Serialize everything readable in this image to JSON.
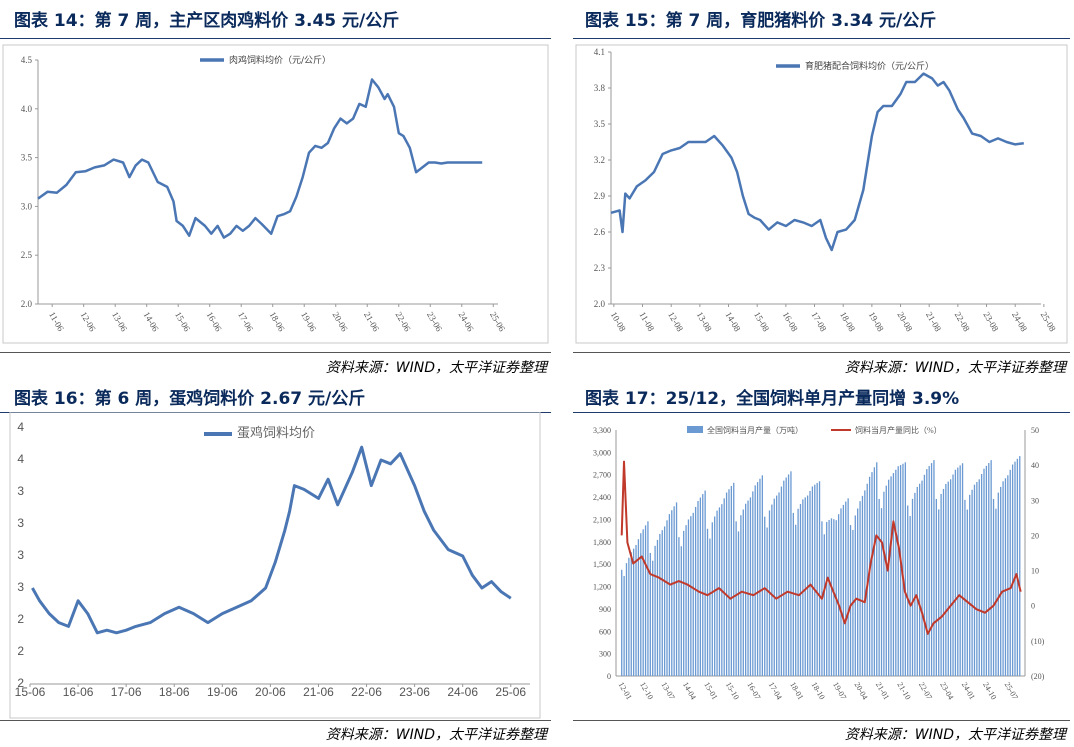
{
  "panels": [
    {
      "id": "fig14",
      "title": "图表 14：第 7 周，主产区肉鸡料价 3.45 元/公斤",
      "source": "资料来源：WIND，太平洋证券整理",
      "chart_data": {
        "type": "line",
        "legend": "肉鸡饲料均价（元/公斤）",
        "ylim": [
          2.0,
          4.5
        ],
        "yticks": [
          "2.0",
          "2.5",
          "3.0",
          "3.5",
          "4.0",
          "4.5"
        ],
        "xlim": [
          2011.0,
          2025.6
        ],
        "xticks": [
          "11-06",
          "12-06",
          "13-06",
          "14-06",
          "15-06",
          "16-06",
          "17-06",
          "18-06",
          "19-06",
          "20-06",
          "21-06",
          "22-06",
          "23-06",
          "24-06",
          "25-06"
        ],
        "series": [
          {
            "color": "#4a76b4",
            "x": [
              2011.0,
              2011.3,
              2011.6,
              2011.9,
              2012.2,
              2012.5,
              2012.8,
              2013.1,
              2013.4,
              2013.7,
              2013.9,
              2014.1,
              2014.3,
              2014.5,
              2014.8,
              2015.1,
              2015.3,
              2015.4,
              2015.6,
              2015.8,
              2016.0,
              2016.3,
              2016.5,
              2016.7,
              2016.9,
              2017.1,
              2017.3,
              2017.5,
              2017.7,
              2017.9,
              2018.1,
              2018.4,
              2018.6,
              2018.8,
              2019.0,
              2019.2,
              2019.4,
              2019.6,
              2019.8,
              2020.0,
              2020.2,
              2020.4,
              2020.6,
              2020.8,
              2021.0,
              2021.2,
              2021.4,
              2021.6,
              2021.8,
              2022.0,
              2022.1,
              2022.3,
              2022.45,
              2022.6,
              2022.8,
              2023.0,
              2023.2,
              2023.4,
              2023.6,
              2023.8,
              2024.0,
              2024.2,
              2024.4,
              2024.5,
              2024.7,
              2024.9,
              2025.1
            ],
            "y": [
              3.08,
              3.15,
              3.14,
              3.22,
              3.35,
              3.36,
              3.4,
              3.42,
              3.48,
              3.45,
              3.3,
              3.42,
              3.48,
              3.45,
              3.25,
              3.2,
              3.05,
              2.85,
              2.8,
              2.7,
              2.88,
              2.8,
              2.72,
              2.8,
              2.68,
              2.72,
              2.8,
              2.75,
              2.8,
              2.88,
              2.82,
              2.72,
              2.9,
              2.92,
              2.95,
              3.1,
              3.3,
              3.55,
              3.62,
              3.6,
              3.65,
              3.8,
              3.9,
              3.85,
              3.9,
              4.05,
              4.02,
              4.3,
              4.22,
              4.1,
              4.15,
              4.02,
              3.75,
              3.72,
              3.6,
              3.35,
              3.4,
              3.45,
              3.45,
              3.44,
              3.45,
              3.45,
              3.45,
              3.45,
              3.45,
              3.45,
              3.45
            ]
          }
        ]
      }
    },
    {
      "id": "fig15",
      "title": "图表 15：第 7 周，育肥猪料价 3.34 元/公斤",
      "source": "资料来源：WIND，太平洋证券整理",
      "chart_data": {
        "type": "line",
        "legend": "育肥猪配合饲料均价（元/公斤）",
        "ylim": [
          2.0,
          4.1
        ],
        "yticks": [
          "2.0",
          "2.3",
          "2.6",
          "2.9",
          "3.2",
          "3.5",
          "3.8",
          "4.1"
        ],
        "xlim": [
          2010.7,
          2025.7
        ],
        "xticks": [
          "10-08",
          "11-08",
          "12-08",
          "13-08",
          "14-08",
          "15-08",
          "16-08",
          "17-08",
          "18-08",
          "19-08",
          "20-08",
          "21-08",
          "22-08",
          "23-08",
          "24-08",
          "25-08"
        ],
        "series": [
          {
            "color": "#4a76b4",
            "x": [
              2010.7,
              2011.0,
              2011.1,
              2011.2,
              2011.35,
              2011.6,
              2011.9,
              2012.2,
              2012.5,
              2012.8,
              2013.1,
              2013.4,
              2013.7,
              2014.0,
              2014.3,
              2014.6,
              2014.9,
              2015.1,
              2015.3,
              2015.5,
              2015.7,
              2015.9,
              2016.2,
              2016.5,
              2016.8,
              2017.1,
              2017.4,
              2017.7,
              2018.0,
              2018.2,
              2018.4,
              2018.6,
              2018.9,
              2019.2,
              2019.5,
              2019.8,
              2020.0,
              2020.2,
              2020.5,
              2020.8,
              2021.0,
              2021.3,
              2021.6,
              2021.9,
              2022.1,
              2022.3,
              2022.5,
              2022.8,
              2023.0,
              2023.3,
              2023.6,
              2023.9,
              2024.2,
              2024.5,
              2024.8,
              2025.1
            ],
            "y": [
              2.76,
              2.78,
              2.6,
              2.92,
              2.88,
              2.98,
              3.03,
              3.1,
              3.25,
              3.28,
              3.3,
              3.35,
              3.35,
              3.35,
              3.4,
              3.32,
              3.22,
              3.1,
              2.9,
              2.75,
              2.72,
              2.7,
              2.62,
              2.68,
              2.65,
              2.7,
              2.68,
              2.65,
              2.7,
              2.55,
              2.45,
              2.6,
              2.62,
              2.7,
              2.95,
              3.4,
              3.6,
              3.65,
              3.65,
              3.75,
              3.85,
              3.85,
              3.92,
              3.88,
              3.82,
              3.85,
              3.78,
              3.62,
              3.55,
              3.42,
              3.4,
              3.35,
              3.38,
              3.35,
              3.33,
              3.34
            ]
          }
        ]
      }
    },
    {
      "id": "fig16",
      "title": "图表 16：第 6 周，蛋鸡饲料价 2.67 元/公斤",
      "source": "资料来源：WIND，太平洋证券整理",
      "chart_data": {
        "type": "line",
        "legend": "蛋鸡饲料均价",
        "ytick_labels": [
          "2",
          "2",
          "2",
          "3",
          "3",
          "3",
          "3",
          "4",
          "4"
        ],
        "ytick_values": [
          2.0,
          2.25,
          2.5,
          2.75,
          3.0,
          3.25,
          3.5,
          3.75,
          4.0
        ],
        "ylim": [
          2.0,
          4.0
        ],
        "xlim": [
          2015.3,
          2025.7
        ],
        "xticks": [
          "15-06",
          "16-06",
          "17-06",
          "18-06",
          "19-06",
          "20-06",
          "21-06",
          "22-06",
          "23-06",
          "24-06",
          "25-06"
        ],
        "series": [
          {
            "color": "#4a76b4",
            "x": [
              2015.35,
              2015.5,
              2015.7,
              2015.9,
              2016.1,
              2016.3,
              2016.5,
              2016.7,
              2016.9,
              2017.1,
              2017.3,
              2017.5,
              2017.8,
              2018.1,
              2018.4,
              2018.7,
              2019.0,
              2019.3,
              2019.6,
              2019.9,
              2020.2,
              2020.4,
              2020.6,
              2020.7,
              2020.8,
              2021.0,
              2021.3,
              2021.5,
              2021.7,
              2022.0,
              2022.2,
              2022.4,
              2022.6,
              2022.8,
              2023.0,
              2023.3,
              2023.5,
              2023.7,
              2024.0,
              2024.3,
              2024.5,
              2024.7,
              2024.9,
              2025.1,
              2025.3
            ],
            "y": [
              2.75,
              2.65,
              2.55,
              2.48,
              2.45,
              2.65,
              2.55,
              2.4,
              2.42,
              2.4,
              2.42,
              2.45,
              2.48,
              2.55,
              2.6,
              2.55,
              2.48,
              2.55,
              2.6,
              2.65,
              2.75,
              2.95,
              3.2,
              3.35,
              3.55,
              3.52,
              3.45,
              3.6,
              3.4,
              3.65,
              3.85,
              3.55,
              3.75,
              3.72,
              3.8,
              3.55,
              3.35,
              3.2,
              3.05,
              3.0,
              2.85,
              2.75,
              2.8,
              2.72,
              2.67
            ]
          }
        ]
      }
    },
    {
      "id": "fig17",
      "title": "图表 17：25/12，全国饲料单月产量同增 3.9%",
      "source": "资料来源：WIND，太平洋证券整理",
      "chart_data": {
        "type": "bar",
        "series_names": [
          "全国饲料当月产量（万吨）",
          "饲料当月产量同比（%）"
        ],
        "left_ylim": [
          0,
          3300
        ],
        "left_yticks": [
          "0",
          "300",
          "600",
          "900",
          "1,200",
          "1,500",
          "1,800",
          "2,100",
          "2,400",
          "2,700",
          "3,000",
          "3,300"
        ],
        "right_ylim": [
          -20,
          50
        ],
        "right_yticks": [
          "(20)",
          "(10)",
          "0",
          "10",
          "20",
          "30",
          "40",
          "50"
        ],
        "xticks": [
          "12-01",
          "12-10",
          "13-07",
          "14-04",
          "15-01",
          "15-10",
          "16-07",
          "17-04",
          "18-01",
          "18-10",
          "19-07",
          "20-04",
          "21-01",
          "21-10",
          "22-07",
          "23-04",
          "24-01",
          "24-10",
          "25-07"
        ],
        "bar_color": "#6b9ad3",
        "line_color": "#c0392b",
        "bar_x": [
          2012.0,
          2013.0,
          2014.0,
          2015.0,
          2016.0,
          2017.0,
          2018.0,
          2019.0,
          2019.5,
          2020.0,
          2020.5,
          2021.0,
          2021.5,
          2022.0,
          2023.0,
          2024.0,
          2025.0,
          2025.9
        ],
        "bar_hi": [
          1800,
          2100,
          2350,
          2500,
          2600,
          2700,
          2750,
          2600,
          2300,
          2400,
          2700,
          2900,
          2950,
          2850,
          2900,
          2850,
          2900,
          2950
        ],
        "bar_lo": [
          1300,
          1500,
          1700,
          1800,
          1900,
          1950,
          2000,
          1900,
          1700,
          1900,
          2100,
          2200,
          2300,
          2100,
          2200,
          2200,
          2200,
          2300
        ],
        "line_x": [
          2012.0,
          2012.08,
          2012.2,
          2012.4,
          2012.7,
          2013.0,
          2013.3,
          2013.7,
          2014.0,
          2014.3,
          2014.7,
          2015.0,
          2015.4,
          2015.8,
          2016.2,
          2016.6,
          2017.0,
          2017.4,
          2017.8,
          2018.2,
          2018.6,
          2019.0,
          2019.2,
          2019.4,
          2019.6,
          2019.8,
          2020.0,
          2020.2,
          2020.5,
          2020.7,
          2020.9,
          2021.1,
          2021.3,
          2021.5,
          2021.7,
          2021.9,
          2022.1,
          2022.3,
          2022.5,
          2022.7,
          2022.9,
          2023.2,
          2023.5,
          2023.8,
          2024.1,
          2024.4,
          2024.7,
          2025.0,
          2025.3,
          2025.6,
          2025.8,
          2025.95
        ],
        "line_y": [
          20,
          41,
          18,
          12,
          14,
          9,
          8,
          6,
          7,
          6,
          4,
          3,
          5,
          2,
          4,
          3,
          5,
          2,
          4,
          3,
          6,
          2,
          8,
          4,
          0,
          -5,
          0,
          2,
          1,
          12,
          20,
          18,
          10,
          24,
          16,
          4,
          0,
          3,
          -2,
          -8,
          -5,
          -3,
          0,
          3,
          1,
          -1,
          -2,
          0,
          4,
          5,
          9,
          4
        ]
      }
    }
  ]
}
